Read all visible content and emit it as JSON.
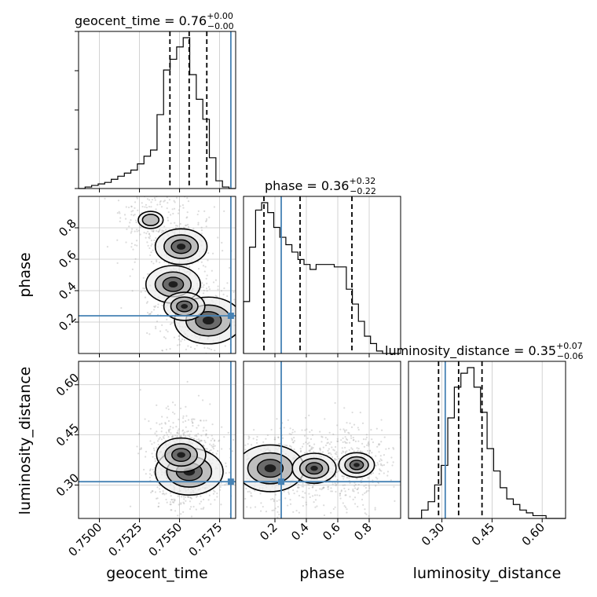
{
  "chart_data": {
    "type": "corner",
    "parameters": [
      {
        "key": "geocent_time",
        "label": "geocent_time",
        "range": [
          0.7487,
          0.7585
        ],
        "ticks": [
          0.75,
          0.7525,
          0.755,
          0.7575
        ],
        "tick_labels": [
          "0.7500",
          "0.7525",
          "0.7550",
          "0.7575"
        ],
        "truth": 0.7582,
        "quantiles": [
          0.7544,
          0.7556,
          0.7567
        ]
      },
      {
        "key": "phase",
        "label": "phase",
        "range": [
          0.0,
          1.0
        ],
        "ticks": [
          0.2,
          0.4,
          0.6,
          0.8
        ],
        "tick_labels": [
          "0.2",
          "0.4",
          "0.6",
          "0.8"
        ],
        "truth": 0.24,
        "quantiles": [
          0.13,
          0.36,
          0.69
        ]
      },
      {
        "key": "luminosity_distance",
        "label": "luminosity_distance",
        "range": [
          0.2,
          0.67
        ],
        "ticks": [
          0.3,
          0.45,
          0.6
        ],
        "tick_labels": [
          "0.30",
          "0.45",
          "0.60"
        ],
        "truth": 0.31,
        "quantiles": [
          0.29,
          0.35,
          0.42
        ]
      }
    ],
    "titles": [
      {
        "param": "geocent_time",
        "text": "geocent_time = 0.76",
        "plus": "+0.00",
        "minus": "−0.00"
      },
      {
        "param": "phase",
        "text": "phase = 0.36",
        "plus": "+0.32",
        "minus": "−0.22"
      },
      {
        "param": "luminosity_distance",
        "text": "luminosity_distance = 0.35",
        "plus": "+0.07",
        "minus": "−0.06"
      }
    ],
    "histograms": {
      "geocent_time": {
        "edges_start": 0.7487,
        "bin_width": 0.000408,
        "counts": [
          0,
          1,
          2,
          3,
          4,
          6,
          8,
          10,
          12,
          16,
          21,
          25,
          48,
          77,
          84,
          92,
          98,
          74,
          58,
          45,
          20,
          5,
          1,
          0
        ]
      },
      "phase": {
        "edges_start": 0.0,
        "bin_width": 0.0385,
        "counts": [
          21,
          43,
          58,
          61,
          57,
          51,
          47,
          44,
          41,
          38,
          36,
          34,
          36,
          36,
          36,
          35,
          35,
          26,
          20,
          13,
          7,
          4,
          1,
          0,
          0,
          0
        ]
      },
      "luminosity_distance": {
        "edges_start": 0.2,
        "bin_width": 0.0196,
        "counts": [
          0,
          0,
          3,
          6,
          12,
          19,
          36,
          47,
          52,
          54,
          47,
          38,
          25,
          17,
          11,
          7,
          5,
          3,
          2,
          1,
          1,
          0,
          0,
          0
        ]
      }
    },
    "density_modes": {
      "phase_vs_geocent_time": [
        {
          "x": 0.7568,
          "y": 0.21,
          "w": 1.0
        },
        {
          "x": 0.7551,
          "y": 0.68,
          "w": 0.7
        },
        {
          "x": 0.7546,
          "y": 0.44,
          "w": 0.75
        },
        {
          "x": 0.7553,
          "y": 0.3,
          "w": 0.5
        },
        {
          "x": 0.7532,
          "y": 0.85,
          "w": 0.2
        }
      ],
      "luminosity_distance_vs_geocent_time": [
        {
          "x": 0.7556,
          "y": 0.34,
          "w": 1.0
        },
        {
          "x": 0.7551,
          "y": 0.39,
          "w": 0.65
        }
      ],
      "luminosity_distance_vs_phase": [
        {
          "x": 0.17,
          "y": 0.35,
          "w": 1.0
        },
        {
          "x": 0.45,
          "y": 0.35,
          "w": 0.55
        },
        {
          "x": 0.72,
          "y": 0.36,
          "w": 0.4
        }
      ]
    },
    "truth_color": "#4682b4",
    "contour_color": "#000000",
    "grid": true
  }
}
